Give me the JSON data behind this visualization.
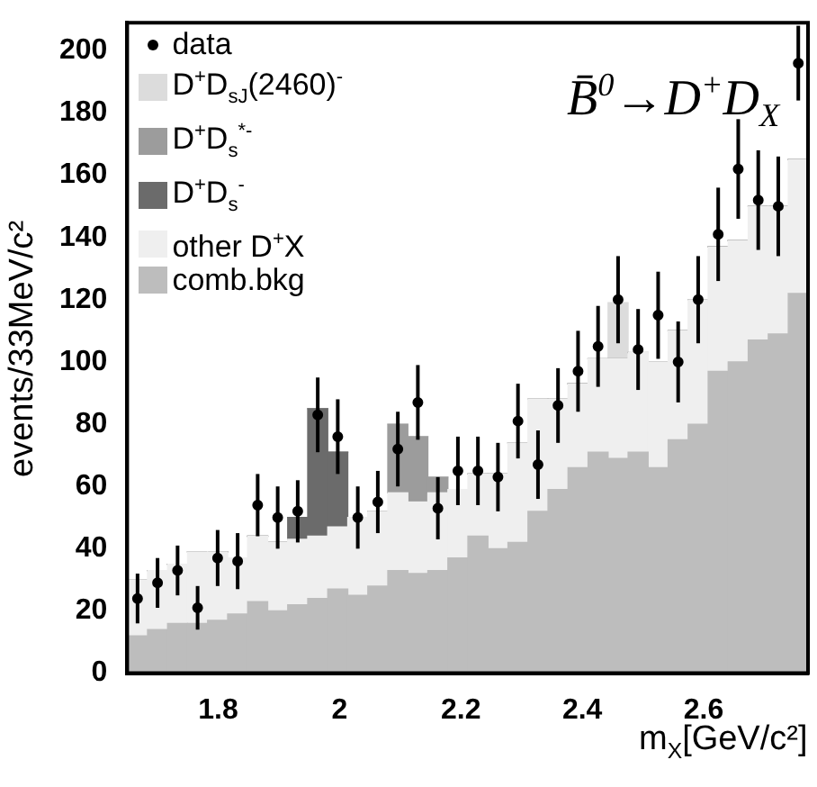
{
  "chart_data": {
    "type": "bar",
    "title": "B̄$^{0}$→D$^{+}$D$_{X}$",
    "xlabel": "m$_{X}$[GeV/c²]",
    "ylabel": "events/33MeV/c²",
    "x": [
      1.667,
      1.7,
      1.733,
      1.766,
      1.799,
      1.832,
      1.865,
      1.898,
      1.931,
      1.964,
      1.997,
      2.03,
      2.063,
      2.096,
      2.129,
      2.162,
      2.195,
      2.228,
      2.261,
      2.294,
      2.327,
      2.36,
      2.393,
      2.426,
      2.459,
      2.492,
      2.525,
      2.558,
      2.591,
      2.624,
      2.657,
      2.69,
      2.723,
      2.756
    ],
    "stacked": true,
    "series": [
      {
        "name": "comb.bkg",
        "color": "#bdbdbd",
        "values": [
          12,
          14,
          16,
          16,
          17,
          19,
          23,
          20,
          22,
          24,
          27,
          25,
          28,
          33,
          32,
          33,
          37,
          44,
          40,
          42,
          52,
          59,
          66,
          71,
          69,
          71,
          66,
          75,
          80,
          97,
          100,
          107,
          109,
          122
        ]
      },
      {
        "name": "other D$^{+}$X",
        "color": "#efefef",
        "values": [
          18,
          19,
          19,
          23,
          22,
          18,
          21,
          22,
          21,
          20,
          20,
          25,
          24,
          25,
          23,
          25,
          22,
          20,
          24,
          32,
          36,
          29,
          27,
          30,
          32,
          32,
          34,
          35,
          40,
          40,
          39,
          43,
          41,
          43
        ]
      },
      {
        "name": "D$^{+}$D$_{s}$$^{-}$",
        "color": "#6b6b6b",
        "values": [
          0,
          0,
          0,
          0,
          0,
          0,
          0,
          0,
          7,
          41,
          24,
          0,
          0,
          0,
          0,
          0,
          0,
          0,
          0,
          0,
          0,
          0,
          0,
          0,
          0,
          0,
          0,
          0,
          0,
          0,
          0,
          0,
          0,
          0
        ]
      },
      {
        "name": "D$^{+}$D$_{s}$$^{*-}$",
        "color": "#9c9c9c",
        "values": [
          0,
          0,
          0,
          0,
          0,
          0,
          0,
          0,
          0,
          0,
          0,
          0,
          0,
          22,
          21,
          5,
          0,
          0,
          0,
          0,
          0,
          0,
          0,
          0,
          0,
          0,
          0,
          0,
          0,
          0,
          0,
          0,
          0,
          0
        ]
      },
      {
        "name": "D$^{+}$D$_{sJ}$(2460)$^{-}$",
        "color": "#dcdcdc",
        "values": [
          0,
          0,
          0,
          0,
          0,
          0,
          0,
          0,
          0,
          0,
          0,
          0,
          0,
          0,
          0,
          0,
          0,
          0,
          0,
          0,
          0,
          0,
          0,
          0,
          18,
          0,
          0,
          0,
          0,
          0,
          0,
          0,
          0,
          0
        ]
      },
      {
        "name": "data",
        "type": "scatter",
        "color": "#000000",
        "x": [
          1.667,
          1.7,
          1.733,
          1.766,
          1.799,
          1.832,
          1.865,
          1.898,
          1.931,
          1.964,
          1.997,
          2.03,
          2.063,
          2.096,
          2.129,
          2.162,
          2.195,
          2.228,
          2.261,
          2.294,
          2.327,
          2.36,
          2.393,
          2.426,
          2.459,
          2.492,
          2.525,
          2.558,
          2.591,
          2.624,
          2.657,
          2.69,
          2.723,
          2.756
        ],
        "values": [
          24,
          29,
          33,
          21,
          37,
          36,
          54,
          50,
          52,
          83,
          76,
          50,
          55,
          72,
          87,
          53,
          65,
          65,
          63,
          81,
          67,
          86,
          97,
          105,
          120,
          104,
          115,
          100,
          120,
          141,
          162,
          152,
          150,
          196
        ],
        "errors": [
          8,
          8,
          8,
          7,
          9,
          9,
          10,
          10,
          10,
          12,
          12,
          10,
          10,
          12,
          12,
          10,
          11,
          11,
          11,
          12,
          11,
          12,
          13,
          13,
          14,
          13,
          14,
          13,
          14,
          15,
          16,
          16,
          16,
          12
        ]
      }
    ],
    "xlim": [
      1.65,
      2.772
    ],
    "xticks": [
      1.8,
      2,
      2.2,
      2.4,
      2.6
    ],
    "ylim": [
      0,
      209
    ],
    "yticks": [
      0,
      20,
      40,
      60,
      80,
      100,
      120,
      140,
      160,
      180,
      200
    ],
    "legend": "top left",
    "marker": "circle"
  }
}
